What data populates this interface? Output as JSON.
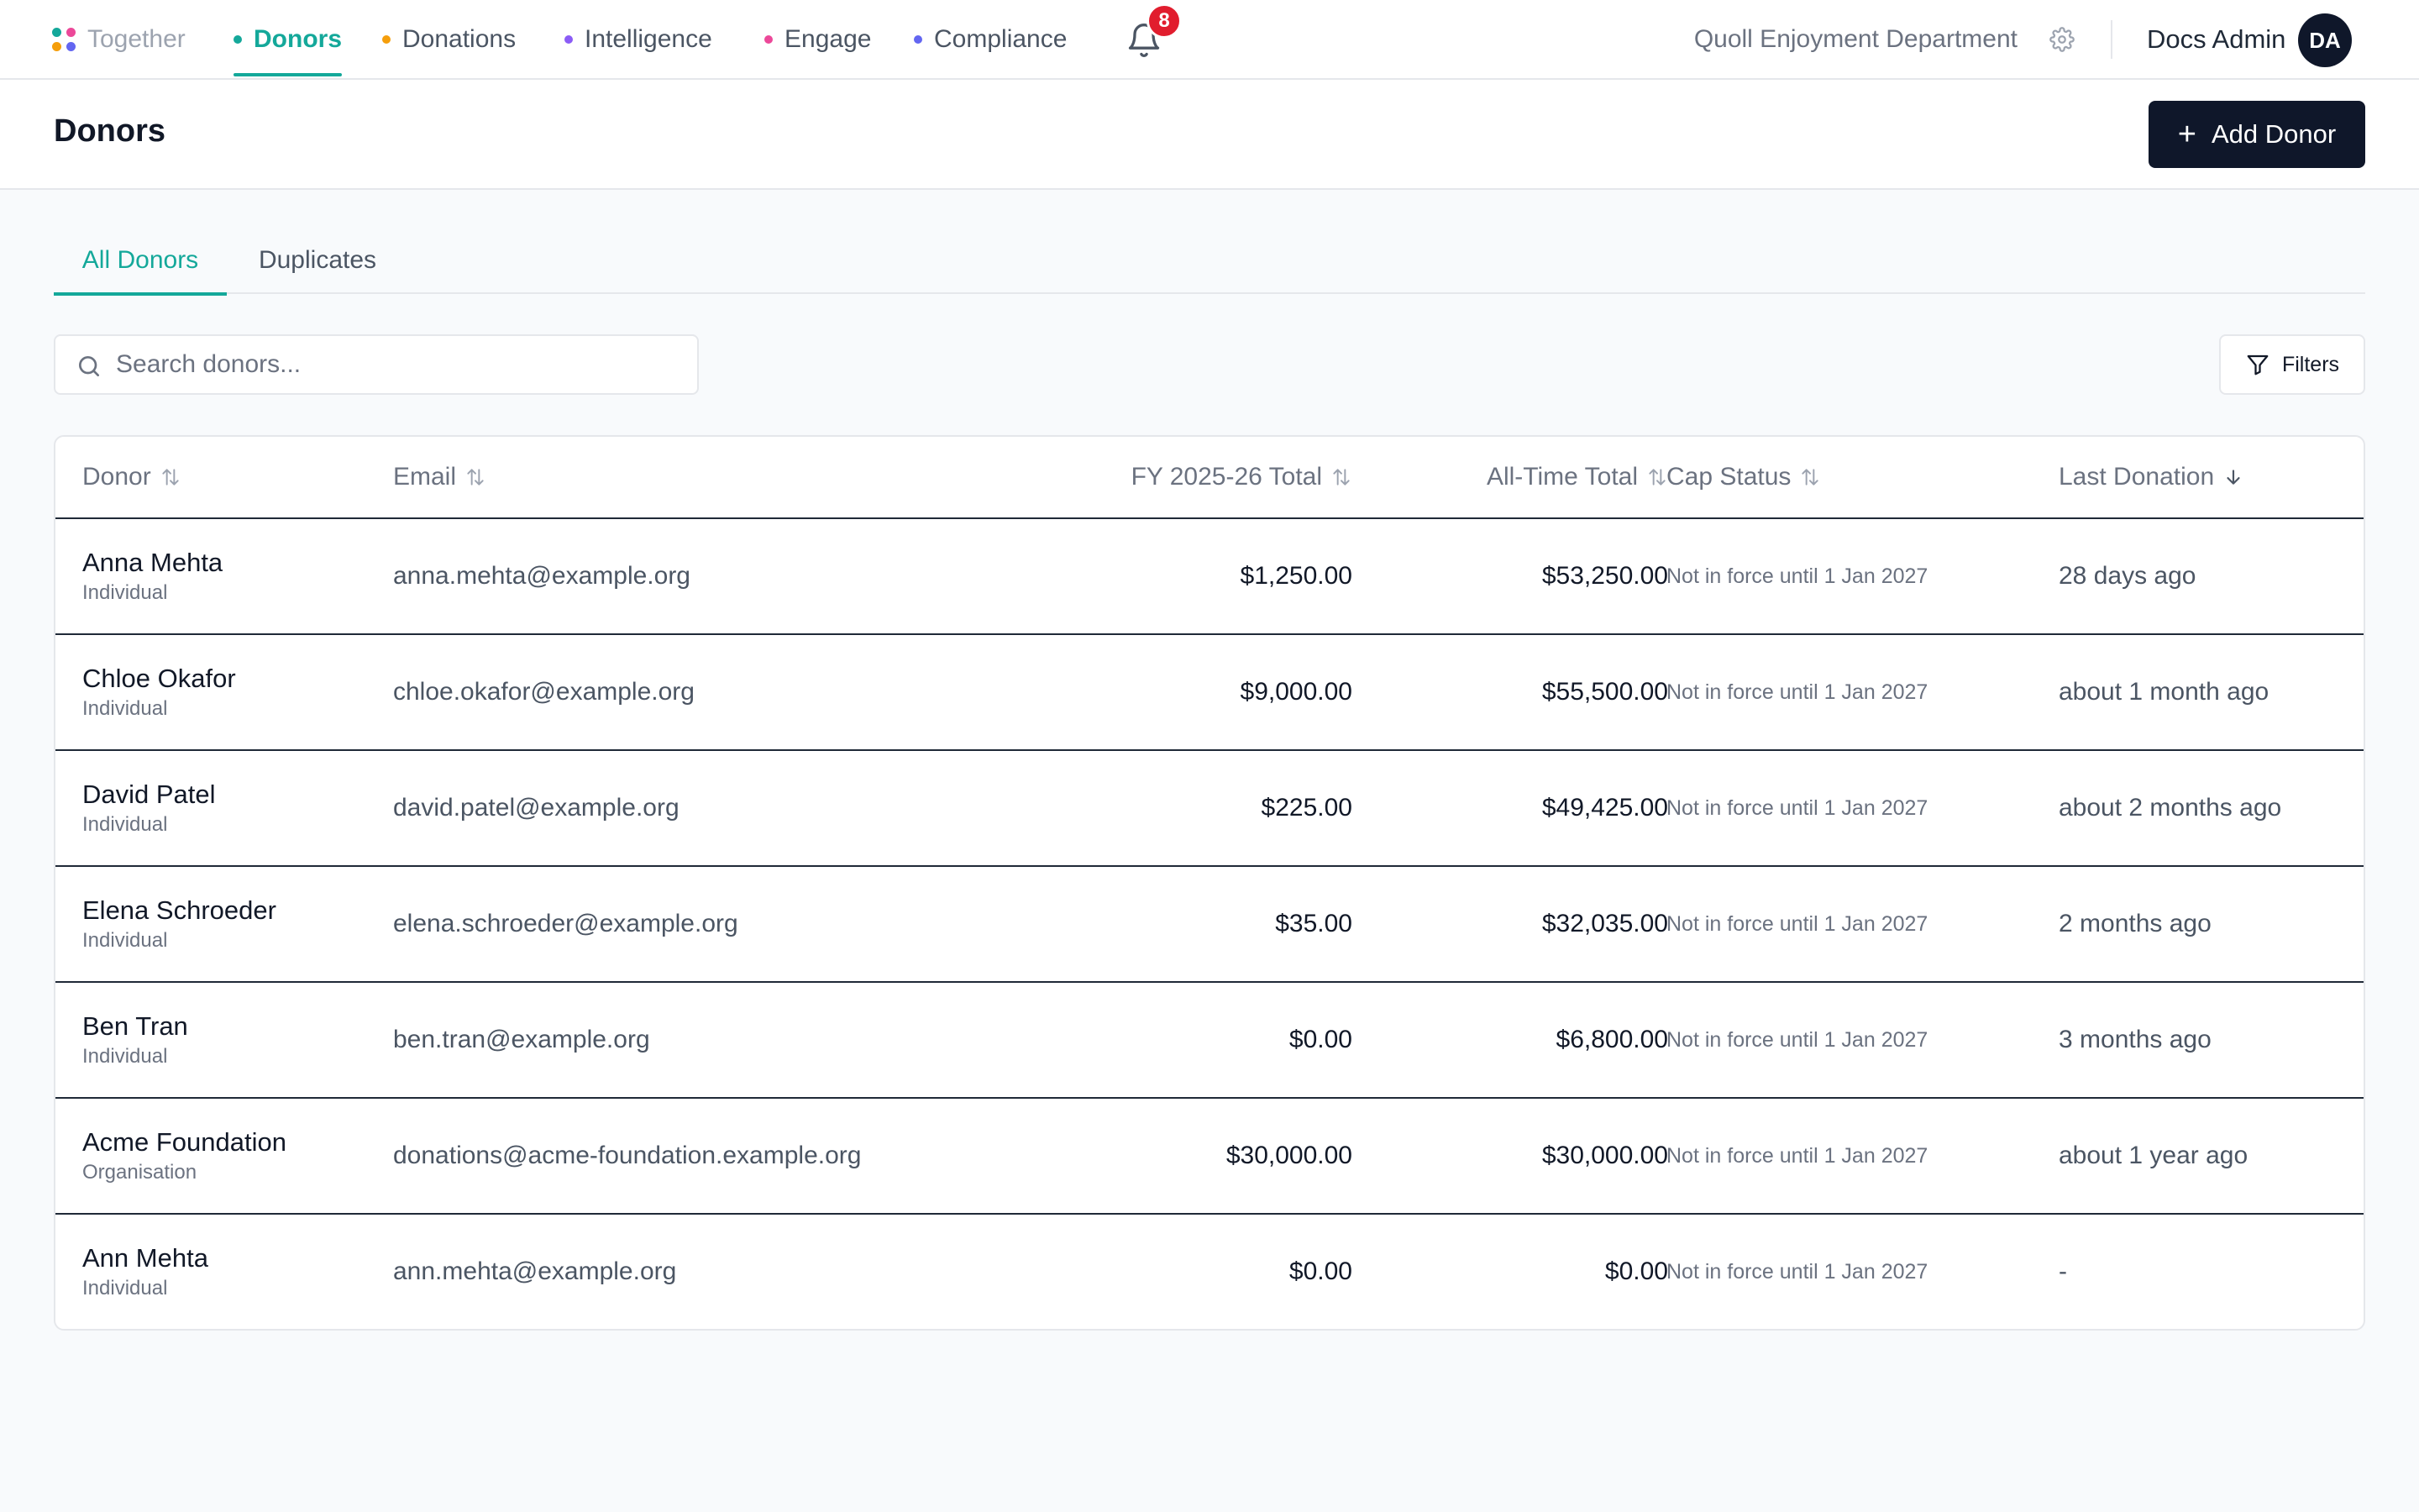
{
  "brand": {
    "name": "Together",
    "logo_colors": [
      "#14a89a",
      "#ec4899",
      "#f59e0b",
      "#6366f1"
    ]
  },
  "nav": {
    "tabs": [
      {
        "label": "Donors",
        "dot_color": "#14a89a",
        "active": true
      },
      {
        "label": "Donations",
        "dot_color": "#f59e0b",
        "active": false
      },
      {
        "label": "Intelligence",
        "dot_color": "#8b5cf6",
        "active": false
      },
      {
        "label": "Engage",
        "dot_color": "#ec4899",
        "active": false
      },
      {
        "label": "Compliance",
        "dot_color": "#6366f1",
        "active": false
      }
    ],
    "notification_count": "8",
    "org_name": "Quoll Enjoyment Department",
    "user_name": "Docs Admin",
    "user_initials": "DA"
  },
  "page": {
    "title": "Donors",
    "add_button_label": "Add Donor"
  },
  "subtabs": [
    {
      "label": "All Donors",
      "active": true
    },
    {
      "label": "Duplicates",
      "active": false
    }
  ],
  "search": {
    "placeholder": "Search donors...",
    "value": ""
  },
  "filters_label": "Filters",
  "table": {
    "columns": [
      "Donor",
      "Email",
      "FY 2025-26 Total",
      "All-Time Total",
      "Cap Status",
      "Last Donation"
    ],
    "rows": [
      {
        "name": "Anna Mehta",
        "type": "Individual",
        "email": "anna.mehta@example.org",
        "fy_total": "$1,250.00",
        "all_time": "$53,250.00",
        "cap": "Not in force until 1 Jan 2027",
        "last": "28 days ago"
      },
      {
        "name": "Chloe Okafor",
        "type": "Individual",
        "email": "chloe.okafor@example.org",
        "fy_total": "$9,000.00",
        "all_time": "$55,500.00",
        "cap": "Not in force until 1 Jan 2027",
        "last": "about 1 month ago"
      },
      {
        "name": "David Patel",
        "type": "Individual",
        "email": "david.patel@example.org",
        "fy_total": "$225.00",
        "all_time": "$49,425.00",
        "cap": "Not in force until 1 Jan 2027",
        "last": "about 2 months ago"
      },
      {
        "name": "Elena Schroeder",
        "type": "Individual",
        "email": "elena.schroeder@example.org",
        "fy_total": "$35.00",
        "all_time": "$32,035.00",
        "cap": "Not in force until 1 Jan 2027",
        "last": "2 months ago"
      },
      {
        "name": "Ben Tran",
        "type": "Individual",
        "email": "ben.tran@example.org",
        "fy_total": "$0.00",
        "all_time": "$6,800.00",
        "cap": "Not in force until 1 Jan 2027",
        "last": "3 months ago"
      },
      {
        "name": "Acme Foundation",
        "type": "Organisation",
        "email": "donations@acme-foundation.example.org",
        "fy_total": "$30,000.00",
        "all_time": "$30,000.00",
        "cap": "Not in force until 1 Jan 2027",
        "last": "about 1 year ago"
      },
      {
        "name": "Ann Mehta",
        "type": "Individual",
        "email": "ann.mehta@example.org",
        "fy_total": "$0.00",
        "all_time": "$0.00",
        "cap": "Not in force until 1 Jan 2027",
        "last": "-"
      }
    ]
  },
  "icons": {
    "notification": "bell-icon",
    "settings": "gear-icon",
    "search": "search-icon",
    "filter": "filter-icon",
    "sort": "sort-icon",
    "sort_desc": "arrow-down-icon",
    "add": "plus-icon"
  }
}
